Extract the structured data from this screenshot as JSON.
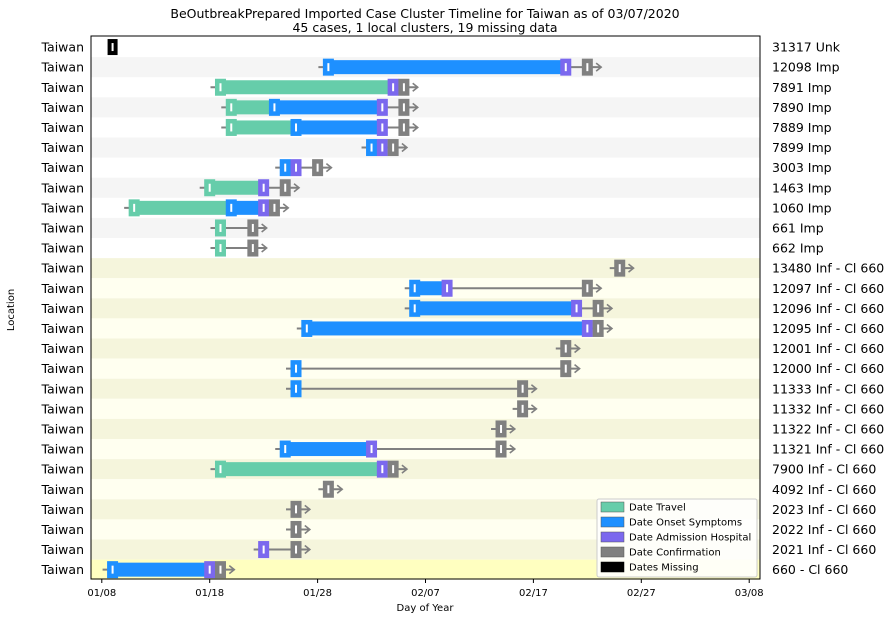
{
  "chart_data": {
    "type": "timeline",
    "title": "BeOutbreakPrepared Imported Case Cluster Timeline for Taiwan as of 03/07/2020",
    "subtitle": "45 cases, 1 local clusters, 19 missing data",
    "xlabel": "Day of Year",
    "ylabel": "Location",
    "x_ticks": [
      "01/08",
      "01/18",
      "01/28",
      "02/07",
      "02/17",
      "02/27",
      "03/08"
    ],
    "x_tick_days": [
      0,
      10,
      20,
      30,
      40,
      50,
      60
    ],
    "xlim": [
      -1,
      61
    ],
    "legend_position": "lower right",
    "colors": {
      "travel": "#66cdaa",
      "onset": "#1e90ff",
      "hospital": "#7b68ee",
      "confirm": "#808080",
      "missing": "#000000",
      "row_imported_alt": "#f5f5f5",
      "row_cluster_a": "#f5f5dc",
      "row_cluster_b": "#fffff0",
      "row_cluster_index": "#ffffc0"
    },
    "legend": [
      {
        "key": "travel",
        "label": "Date Travel"
      },
      {
        "key": "onset",
        "label": "Date Onset Symptoms"
      },
      {
        "key": "hospital",
        "label": "Date Admission Hospital"
      },
      {
        "key": "confirm",
        "label": "Date Confirmation"
      },
      {
        "key": "missing",
        "label": "Dates Missing"
      }
    ],
    "rows": [
      {
        "location": "Taiwan",
        "label": "31317 Unk",
        "bg": "none",
        "missing": 1
      },
      {
        "location": "Taiwan",
        "label": "12098 Imp",
        "bg": "row_imported_alt",
        "onset": 21,
        "confirm": 45,
        "end": 46,
        "segments": [
          {
            "from": 21,
            "to": 43,
            "color": "onset"
          }
        ],
        "markers": [
          {
            "day": 21,
            "key": "onset"
          },
          {
            "day": 43,
            "key": "hospital"
          },
          {
            "day": 45,
            "key": "confirm"
          }
        ]
      },
      {
        "location": "Taiwan",
        "label": "7891 Imp",
        "bg": "none",
        "travel": 11,
        "confirm": 28,
        "end": 29,
        "segments": [
          {
            "from": 11,
            "to": 27,
            "color": "travel"
          }
        ],
        "markers": [
          {
            "day": 11,
            "key": "travel"
          },
          {
            "day": 27,
            "key": "hospital"
          },
          {
            "day": 28,
            "key": "confirm"
          }
        ]
      },
      {
        "location": "Taiwan",
        "label": "7890 Imp",
        "bg": "row_imported_alt",
        "travel": 12,
        "confirm": 28,
        "end": 29,
        "segments": [
          {
            "from": 12,
            "to": 16,
            "color": "travel"
          },
          {
            "from": 16,
            "to": 26,
            "color": "onset"
          }
        ],
        "markers": [
          {
            "day": 12,
            "key": "travel"
          },
          {
            "day": 16,
            "key": "onset"
          },
          {
            "day": 26,
            "key": "hospital"
          },
          {
            "day": 28,
            "key": "confirm"
          }
        ]
      },
      {
        "location": "Taiwan",
        "label": "7889 Imp",
        "bg": "none",
        "travel": 12,
        "confirm": 28,
        "end": 29,
        "segments": [
          {
            "from": 12,
            "to": 18,
            "color": "travel"
          },
          {
            "from": 18,
            "to": 26,
            "color": "onset"
          }
        ],
        "markers": [
          {
            "day": 12,
            "key": "travel"
          },
          {
            "day": 18,
            "key": "onset"
          },
          {
            "day": 26,
            "key": "hospital"
          },
          {
            "day": 28,
            "key": "confirm"
          }
        ]
      },
      {
        "location": "Taiwan",
        "label": "7899 Imp",
        "bg": "row_imported_alt",
        "onset": 25,
        "confirm": 27,
        "end": 28,
        "segments": [
          {
            "from": 25,
            "to": 26,
            "color": "onset"
          }
        ],
        "markers": [
          {
            "day": 25,
            "key": "onset"
          },
          {
            "day": 26,
            "key": "hospital"
          },
          {
            "day": 27,
            "key": "confirm"
          }
        ]
      },
      {
        "location": "Taiwan",
        "label": "3003 Imp",
        "bg": "none",
        "onset": 17,
        "confirm": 20,
        "end": 21,
        "segments": [
          {
            "from": 17,
            "to": 18,
            "color": "onset"
          }
        ],
        "markers": [
          {
            "day": 17,
            "key": "onset"
          },
          {
            "day": 18,
            "key": "hospital"
          },
          {
            "day": 20,
            "key": "confirm"
          }
        ]
      },
      {
        "location": "Taiwan",
        "label": "1463 Imp",
        "bg": "row_imported_alt",
        "travel": 10,
        "confirm": 17,
        "end": 18,
        "segments": [
          {
            "from": 10,
            "to": 15,
            "color": "travel"
          }
        ],
        "markers": [
          {
            "day": 10,
            "key": "travel"
          },
          {
            "day": 15,
            "key": "hospital"
          },
          {
            "day": 17,
            "key": "confirm"
          }
        ]
      },
      {
        "location": "Taiwan",
        "label": "1060 Imp",
        "bg": "none",
        "travel": 3,
        "confirm": 16,
        "end": 17,
        "segments": [
          {
            "from": 3,
            "to": 12,
            "color": "travel"
          },
          {
            "from": 12,
            "to": 15,
            "color": "onset"
          }
        ],
        "markers": [
          {
            "day": 3,
            "key": "travel"
          },
          {
            "day": 12,
            "key": "onset"
          },
          {
            "day": 15,
            "key": "hospital"
          },
          {
            "day": 16,
            "key": "confirm"
          }
        ]
      },
      {
        "location": "Taiwan",
        "label": "661 Imp",
        "bg": "row_imported_alt",
        "travel": 11,
        "confirm": 14,
        "end": 15,
        "segments": [],
        "markers": [
          {
            "day": 11,
            "key": "travel"
          },
          {
            "day": 14,
            "key": "confirm"
          }
        ]
      },
      {
        "location": "Taiwan",
        "label": "662 Imp",
        "bg": "none",
        "travel": 11,
        "confirm": 14,
        "end": 15,
        "segments": [],
        "markers": [
          {
            "day": 11,
            "key": "travel"
          },
          {
            "day": 14,
            "key": "confirm"
          }
        ]
      },
      {
        "location": "Taiwan",
        "label": "13480 Inf - Cl 660",
        "bg": "row_cluster_a",
        "confirm": 48,
        "end": 49,
        "segments": [],
        "markers": [
          {
            "day": 48,
            "key": "confirm"
          }
        ]
      },
      {
        "location": "Taiwan",
        "label": "12097 Inf - Cl 660",
        "bg": "row_cluster_b",
        "onset": 29,
        "confirm": 45,
        "end": 46,
        "segments": [
          {
            "from": 29,
            "to": 32,
            "color": "onset"
          }
        ],
        "markers": [
          {
            "day": 29,
            "key": "onset"
          },
          {
            "day": 32,
            "key": "hospital"
          },
          {
            "day": 45,
            "key": "confirm"
          }
        ]
      },
      {
        "location": "Taiwan",
        "label": "12096 Inf - Cl 660",
        "bg": "row_cluster_a",
        "onset": 29,
        "confirm": 46,
        "end": 47,
        "segments": [
          {
            "from": 29,
            "to": 44,
            "color": "onset"
          }
        ],
        "markers": [
          {
            "day": 29,
            "key": "onset"
          },
          {
            "day": 44,
            "key": "hospital"
          },
          {
            "day": 46,
            "key": "confirm"
          }
        ]
      },
      {
        "location": "Taiwan",
        "label": "12095 Inf - Cl 660",
        "bg": "row_cluster_b",
        "onset": 19,
        "confirm": 46,
        "end": 47,
        "segments": [
          {
            "from": 19,
            "to": 45,
            "color": "onset"
          }
        ],
        "markers": [
          {
            "day": 19,
            "key": "onset"
          },
          {
            "day": 45,
            "key": "hospital"
          },
          {
            "day": 46,
            "key": "confirm"
          }
        ]
      },
      {
        "location": "Taiwan",
        "label": "12001 Inf - Cl 660",
        "bg": "row_cluster_a",
        "confirm": 43,
        "end": 44,
        "segments": [],
        "markers": [
          {
            "day": 43,
            "key": "confirm"
          }
        ]
      },
      {
        "location": "Taiwan",
        "label": "12000 Inf - Cl 660",
        "bg": "row_cluster_b",
        "onset": 18,
        "confirm": 43,
        "end": 44,
        "segments": [],
        "markers": [
          {
            "day": 18,
            "key": "onset"
          },
          {
            "day": 43,
            "key": "confirm"
          }
        ]
      },
      {
        "location": "Taiwan",
        "label": "11333 Inf - Cl 660",
        "bg": "row_cluster_a",
        "onset": 18,
        "confirm": 39,
        "end": 40,
        "segments": [],
        "markers": [
          {
            "day": 18,
            "key": "onset"
          },
          {
            "day": 39,
            "key": "confirm"
          }
        ]
      },
      {
        "location": "Taiwan",
        "label": "11332 Inf - Cl 660",
        "bg": "row_cluster_b",
        "confirm": 39,
        "end": 40,
        "segments": [],
        "markers": [
          {
            "day": 39,
            "key": "confirm"
          }
        ]
      },
      {
        "location": "Taiwan",
        "label": "11322 Inf - Cl 660",
        "bg": "row_cluster_a",
        "confirm": 37,
        "end": 38,
        "segments": [],
        "markers": [
          {
            "day": 37,
            "key": "confirm"
          }
        ]
      },
      {
        "location": "Taiwan",
        "label": "11321 Inf - Cl 660",
        "bg": "row_cluster_b",
        "onset": 17,
        "confirm": 37,
        "end": 38,
        "segments": [
          {
            "from": 17,
            "to": 25,
            "color": "onset"
          }
        ],
        "markers": [
          {
            "day": 17,
            "key": "onset"
          },
          {
            "day": 25,
            "key": "hospital"
          },
          {
            "day": 37,
            "key": "confirm"
          }
        ]
      },
      {
        "location": "Taiwan",
        "label": "7900 Inf - Cl 660",
        "bg": "row_cluster_a",
        "travel": 11,
        "confirm": 27,
        "end": 28,
        "segments": [
          {
            "from": 11,
            "to": 26,
            "color": "travel"
          }
        ],
        "markers": [
          {
            "day": 11,
            "key": "travel"
          },
          {
            "day": 26,
            "key": "hospital"
          },
          {
            "day": 27,
            "key": "confirm"
          }
        ]
      },
      {
        "location": "Taiwan",
        "label": "4092 Inf - Cl 660",
        "bg": "row_cluster_b",
        "confirm": 21,
        "end": 22,
        "segments": [],
        "markers": [
          {
            "day": 21,
            "key": "confirm"
          }
        ]
      },
      {
        "location": "Taiwan",
        "label": "2023 Inf - Cl 660",
        "bg": "row_cluster_a",
        "confirm": 18,
        "end": 19,
        "segments": [],
        "markers": [
          {
            "day": 18,
            "key": "confirm"
          }
        ]
      },
      {
        "location": "Taiwan",
        "label": "2022 Inf - Cl 660",
        "bg": "row_cluster_b",
        "confirm": 18,
        "end": 19,
        "segments": [],
        "markers": [
          {
            "day": 18,
            "key": "confirm"
          }
        ]
      },
      {
        "location": "Taiwan",
        "label": "2021 Inf - Cl 660",
        "bg": "row_cluster_a",
        "onset": 15,
        "confirm": 18,
        "end": 19,
        "segments": [],
        "markers": [
          {
            "day": 15,
            "key": "hospital"
          },
          {
            "day": 18,
            "key": "confirm"
          }
        ]
      },
      {
        "location": "Taiwan",
        "label": "660 - Cl 660",
        "bg": "row_cluster_index",
        "onset": 1,
        "confirm": 11,
        "end": 12,
        "segments": [
          {
            "from": 1,
            "to": 10,
            "color": "onset"
          }
        ],
        "markers": [
          {
            "day": 1,
            "key": "onset"
          },
          {
            "day": 10,
            "key": "hospital"
          },
          {
            "day": 11,
            "key": "confirm"
          }
        ]
      }
    ]
  }
}
